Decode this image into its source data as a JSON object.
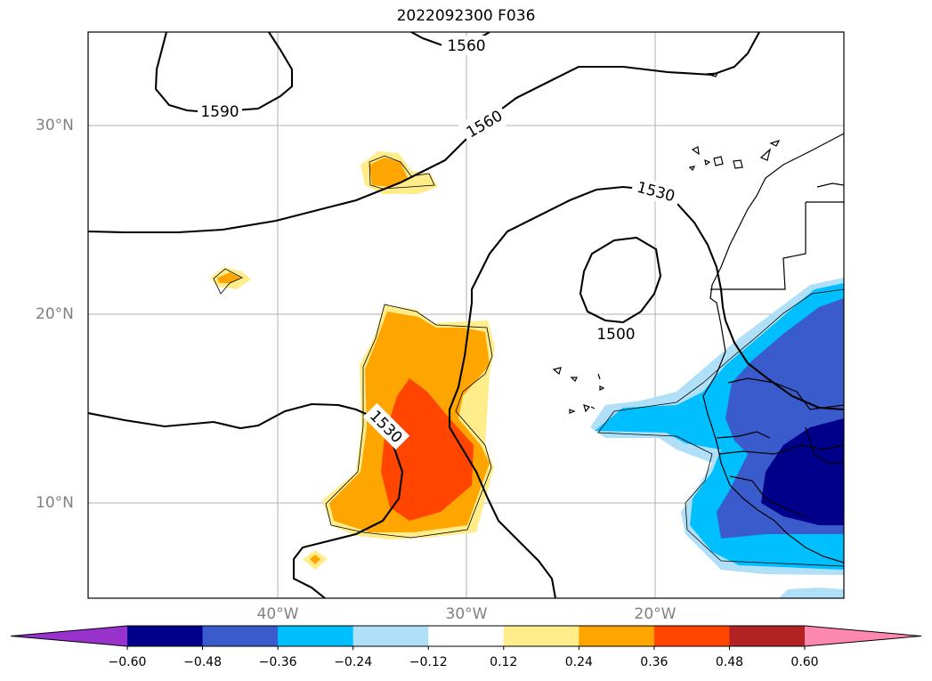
{
  "title": "2022092300 F036",
  "map": {
    "lat_ticks": [
      {
        "label": "30°N",
        "value": 30
      },
      {
        "label": "20°N",
        "value": 20
      },
      {
        "label": "10°N",
        "value": 10
      }
    ],
    "lon_ticks": [
      {
        "label": "40°W",
        "value": -40
      },
      {
        "label": "30°W",
        "value": -30
      },
      {
        "label": "20°W",
        "value": -20
      }
    ],
    "contour_labels": [
      "1590",
      "1560",
      "1560",
      "1530",
      "1500",
      "1530"
    ]
  },
  "colorbar": {
    "ticks": [
      "−0.60",
      "−0.48",
      "−0.36",
      "−0.24",
      "−0.12",
      "0.12",
      "0.24",
      "0.36",
      "0.48",
      "0.60"
    ],
    "colors": [
      "#9932cc",
      "#00008b",
      "#3a5bcc",
      "#00bfff",
      "#b0e0f8",
      "#ffffff",
      "#ffec8b",
      "#ffa500",
      "#ff4500",
      "#b22222",
      "#ff88b0"
    ]
  }
}
